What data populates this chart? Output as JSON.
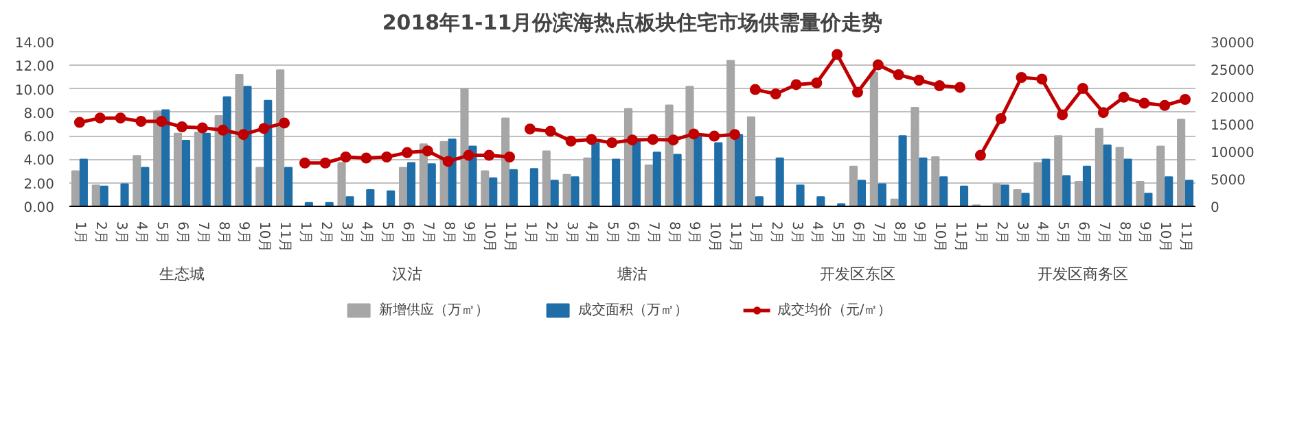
{
  "chart_data": {
    "type": "line",
    "title": "2018年1-11月份滨海热点板块住宅市场供需量价走势",
    "categories": [
      "1月",
      "2月",
      "3月",
      "4月",
      "5月",
      "6月",
      "7月",
      "8月",
      "9月",
      "10月",
      "11月",
      "1月",
      "2月",
      "3月",
      "4月",
      "5月",
      "6月",
      "7月",
      "8月",
      "9月",
      "10月",
      "11月",
      "1月",
      "2月",
      "3月",
      "4月",
      "5月",
      "6月",
      "7月",
      "8月",
      "9月",
      "10月",
      "11月",
      "1月",
      "2月",
      "3月",
      "4月",
      "5月",
      "6月",
      "7月",
      "8月",
      "9月",
      "10月",
      "11月",
      "1月",
      "2月",
      "3月",
      "4月",
      "5月",
      "6月",
      "7月",
      "8月",
      "9月",
      "10月",
      "11月"
    ],
    "annotations": [
      "生态城",
      "汉沽",
      "塘沽",
      "开发区东区",
      "开发区商务区"
    ],
    "series": [
      {
        "name": "新增供应（万㎡）",
        "type": "bar",
        "color": "#a6a6a6",
        "values": [
          3.0,
          1.8,
          null,
          4.3,
          8.1,
          6.2,
          6.3,
          7.7,
          11.2,
          3.3,
          11.6,
          null,
          null,
          3.7,
          null,
          null,
          3.3,
          5.3,
          5.5,
          10.0,
          3.0,
          7.5,
          null,
          4.7,
          2.7,
          4.1,
          null,
          8.3,
          3.5,
          8.6,
          10.2,
          null,
          12.4,
          7.6,
          null,
          null,
          null,
          null,
          3.4,
          11.4,
          0.6,
          8.4,
          4.2,
          null,
          0.1,
          1.9,
          1.4,
          3.7,
          6.0,
          2.1,
          6.6,
          5.0,
          2.1,
          5.1,
          7.4
        ]
      },
      {
        "name": "成交面积（万㎡）",
        "type": "bar",
        "color": "#1f6ea8",
        "values": [
          4.0,
          1.7,
          1.9,
          3.3,
          8.2,
          5.6,
          6.2,
          9.3,
          10.2,
          9.0,
          3.3,
          0.3,
          0.3,
          0.8,
          1.4,
          1.3,
          3.7,
          3.6,
          5.7,
          5.1,
          2.4,
          3.1,
          3.2,
          2.2,
          2.5,
          5.4,
          4.0,
          5.6,
          4.6,
          4.4,
          5.9,
          5.4,
          6.1,
          0.8,
          4.1,
          1.8,
          0.8,
          0.2,
          2.2,
          1.9,
          6.0,
          4.1,
          2.5,
          1.7,
          null,
          1.8,
          1.1,
          4.0,
          2.6,
          3.4,
          5.2,
          4.0,
          1.1,
          2.5,
          2.2
        ]
      },
      {
        "name": "成交均价（元/㎡）",
        "axis": "y2",
        "color": "#c00000",
        "values": [
          15300,
          16100,
          16100,
          15500,
          15500,
          14500,
          14300,
          13900,
          13100,
          14200,
          15200,
          7900,
          7900,
          9000,
          8800,
          9000,
          9800,
          10100,
          8200,
          9300,
          9300,
          9000,
          14100,
          13700,
          11900,
          12200,
          11600,
          12100,
          12200,
          12100,
          13200,
          12800,
          13100,
          21300,
          20500,
          22200,
          22500,
          27700,
          20800,
          25800,
          24000,
          23000,
          22000,
          21700,
          9300,
          16000,
          23500,
          23200,
          16700,
          21500,
          17100,
          19900,
          18800,
          18400,
          19500
        ]
      }
    ],
    "ylim": [
      0,
      14
    ],
    "yticks": [
      {
        "value": 0,
        "label": "0.00"
      },
      {
        "value": 2,
        "label": "2.00"
      },
      {
        "value": 4,
        "label": "4.00"
      },
      {
        "value": 6,
        "label": "6.00"
      },
      {
        "value": 8,
        "label": "8.00"
      },
      {
        "value": 10,
        "label": "10.00"
      },
      {
        "value": 12,
        "label": "12.00"
      },
      {
        "value": 14,
        "label": "14.00"
      }
    ],
    "y2lim": [
      0,
      30000
    ],
    "y2ticks": [
      0,
      5000,
      10000,
      15000,
      20000,
      25000,
      30000
    ],
    "grid": "y",
    "legend": "bottom",
    "marker": "circle",
    "line_style": "solid"
  }
}
